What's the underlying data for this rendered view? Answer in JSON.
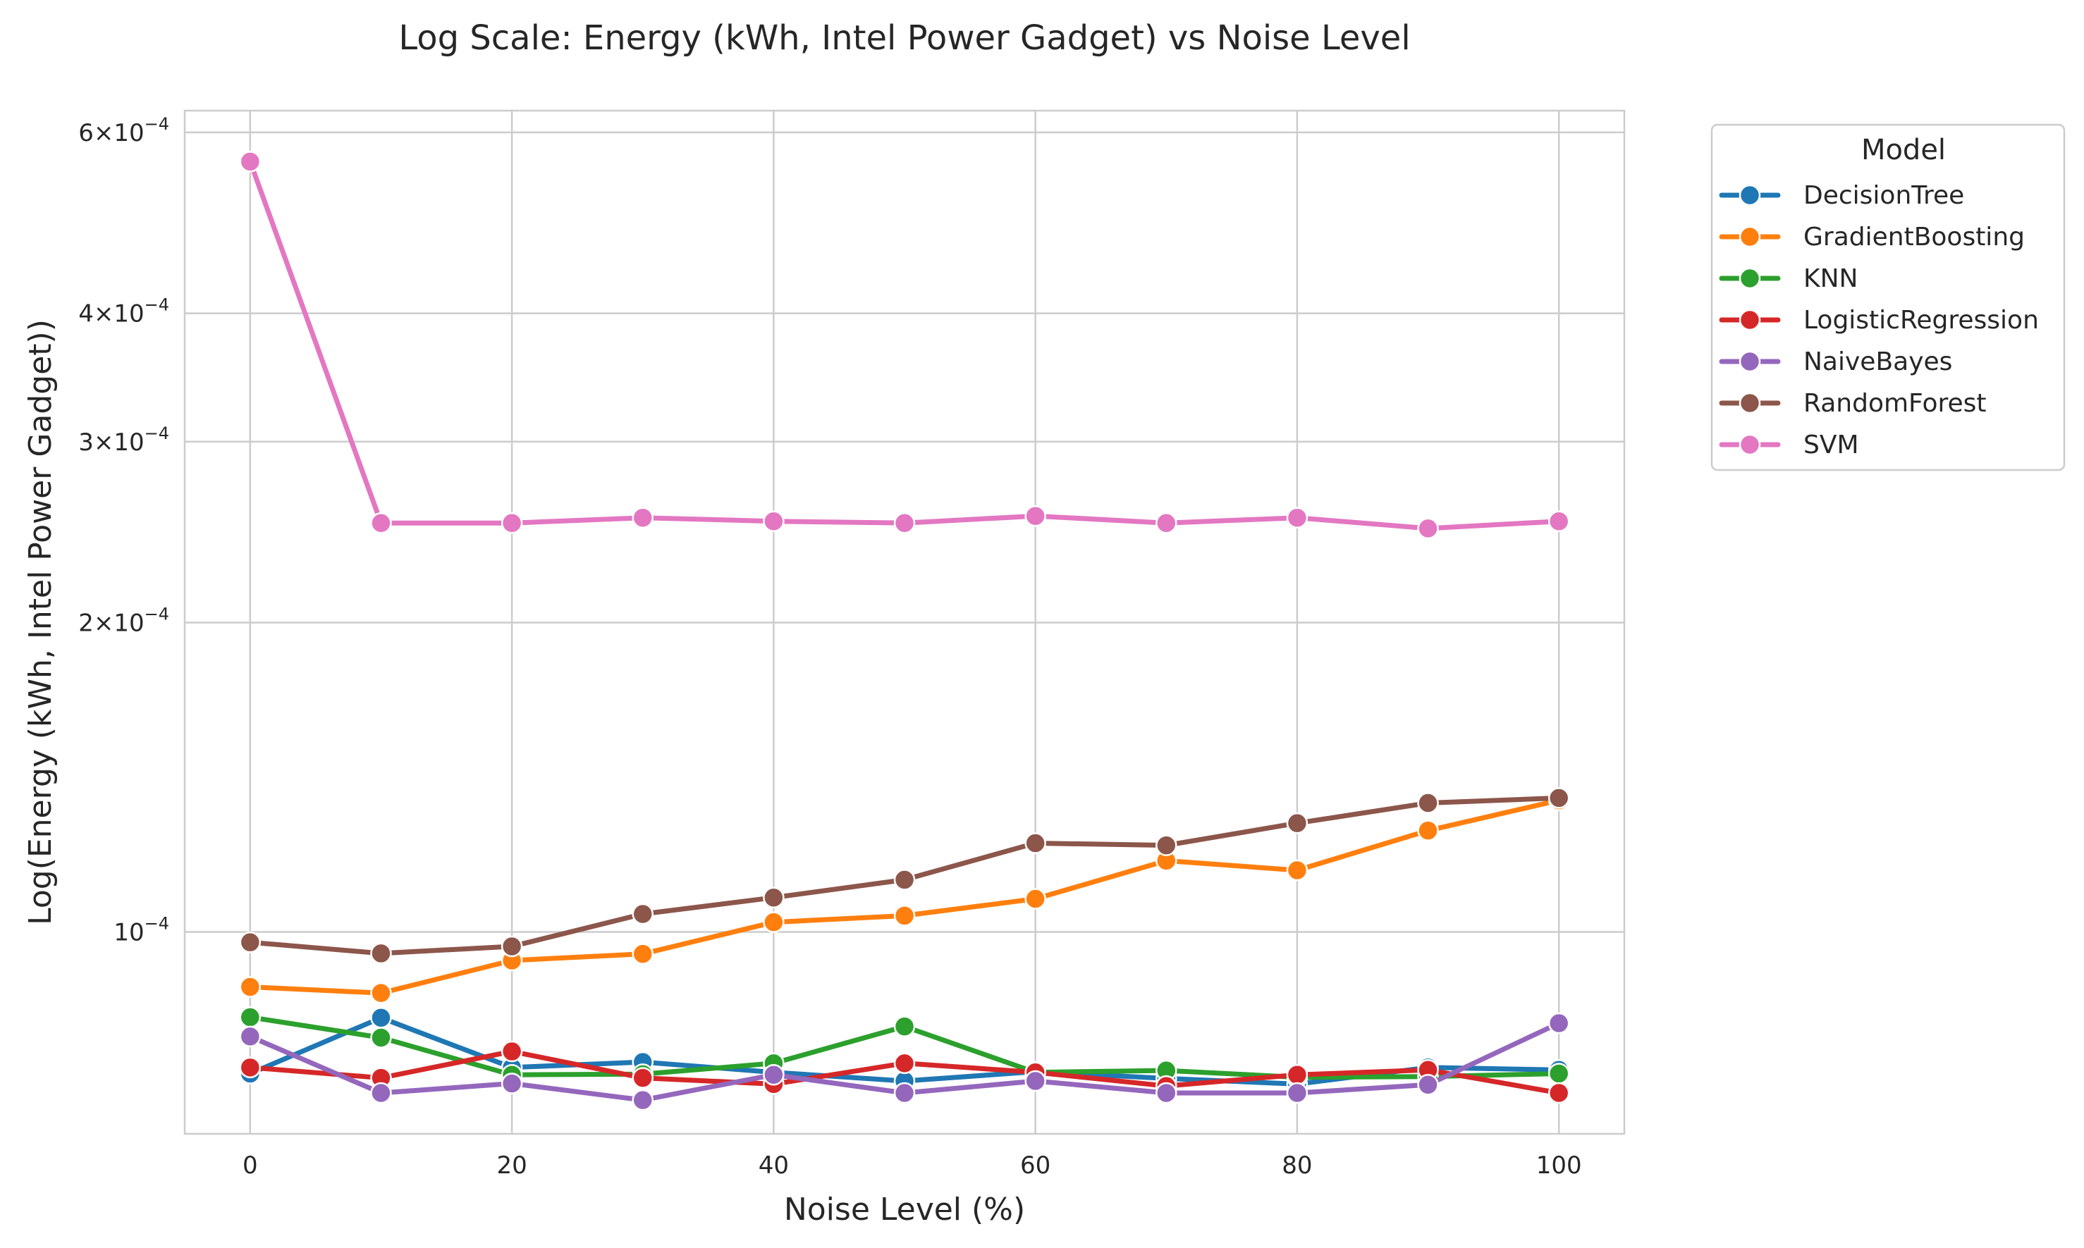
{
  "chart_data": {
    "type": "line",
    "title": "Log Scale: Energy (kWh, Intel Power Gadget) vs Noise Level",
    "xlabel": "Noise Level (%)",
    "ylabel": "Log(Energy (kWh, Intel Power Gadget))",
    "yscale": "log",
    "xlim": [
      -5,
      105
    ],
    "ylim": [
      6.36e-05,
      0.00063
    ],
    "x_ticks": [
      0,
      20,
      40,
      60,
      80,
      100
    ],
    "x_tick_labels": [
      "0",
      "20",
      "40",
      "60",
      "80",
      "100"
    ],
    "y_ticks": [
      {
        "value": 0.0006,
        "mantissa": "6",
        "exponent": "−4"
      },
      {
        "value": 0.0004,
        "mantissa": "4",
        "exponent": "−4"
      },
      {
        "value": 0.0003,
        "mantissa": "3",
        "exponent": "−4"
      },
      {
        "value": 0.0002,
        "mantissa": "2",
        "exponent": "−4"
      },
      {
        "value": 0.0001,
        "mantissa": "",
        "exponent": "−4"
      }
    ],
    "y_minor_gridlines": false,
    "grid": true,
    "legend": {
      "title": "Model",
      "placement": "outside-right-top"
    },
    "x": [
      0,
      10,
      20,
      30,
      40,
      50,
      60,
      70,
      80,
      90,
      100
    ],
    "series": [
      {
        "name": "DecisionTree",
        "color": "#1f77b4",
        "values": [
          7.28e-05,
          8.25e-05,
          7.38e-05,
          7.47e-05,
          7.3e-05,
          7.16e-05,
          7.31e-05,
          7.2e-05,
          7.11e-05,
          7.38e-05,
          7.34e-05
        ]
      },
      {
        "name": "GradientBoosting",
        "color": "#ff7f0e",
        "values": [
          8.84e-05,
          8.72e-05,
          9.38e-05,
          9.52e-05,
          0.0001022,
          0.0001037,
          0.0001077,
          0.0001173,
          0.0001148,
          0.0001255,
          0.0001343
        ]
      },
      {
        "name": "KNN",
        "color": "#2ca02c",
        "values": [
          8.26e-05,
          7.89e-05,
          7.26e-05,
          7.27e-05,
          7.45e-05,
          8.09e-05,
          7.3e-05,
          7.33e-05,
          7.22e-05,
          7.23e-05,
          7.28e-05
        ]
      },
      {
        "name": "LogisticRegression",
        "color": "#d62728",
        "values": [
          7.38e-05,
          7.21e-05,
          7.65e-05,
          7.21e-05,
          7.11e-05,
          7.45e-05,
          7.3e-05,
          7.08e-05,
          7.26e-05,
          7.34e-05,
          6.97e-05
        ]
      },
      {
        "name": "NaiveBayes",
        "color": "#9467bd",
        "values": [
          7.91e-05,
          6.97e-05,
          7.12e-05,
          6.86e-05,
          7.26e-05,
          6.97e-05,
          7.16e-05,
          6.97e-05,
          6.97e-05,
          7.1e-05,
          8.15e-05
        ]
      },
      {
        "name": "RandomForest",
        "color": "#8c564b",
        "values": [
          9.77e-05,
          9.53e-05,
          9.68e-05,
          0.0001041,
          0.000108,
          0.0001124,
          0.000122,
          0.0001214,
          0.0001276,
          0.0001335,
          0.000135
        ]
      },
      {
        "name": "SVM",
        "color": "#e377c2",
        "values": [
          0.000562,
          0.00025,
          0.00025,
          0.000253,
          0.000251,
          0.00025,
          0.000254,
          0.00025,
          0.000253,
          0.000247,
          0.000251
        ]
      }
    ]
  }
}
